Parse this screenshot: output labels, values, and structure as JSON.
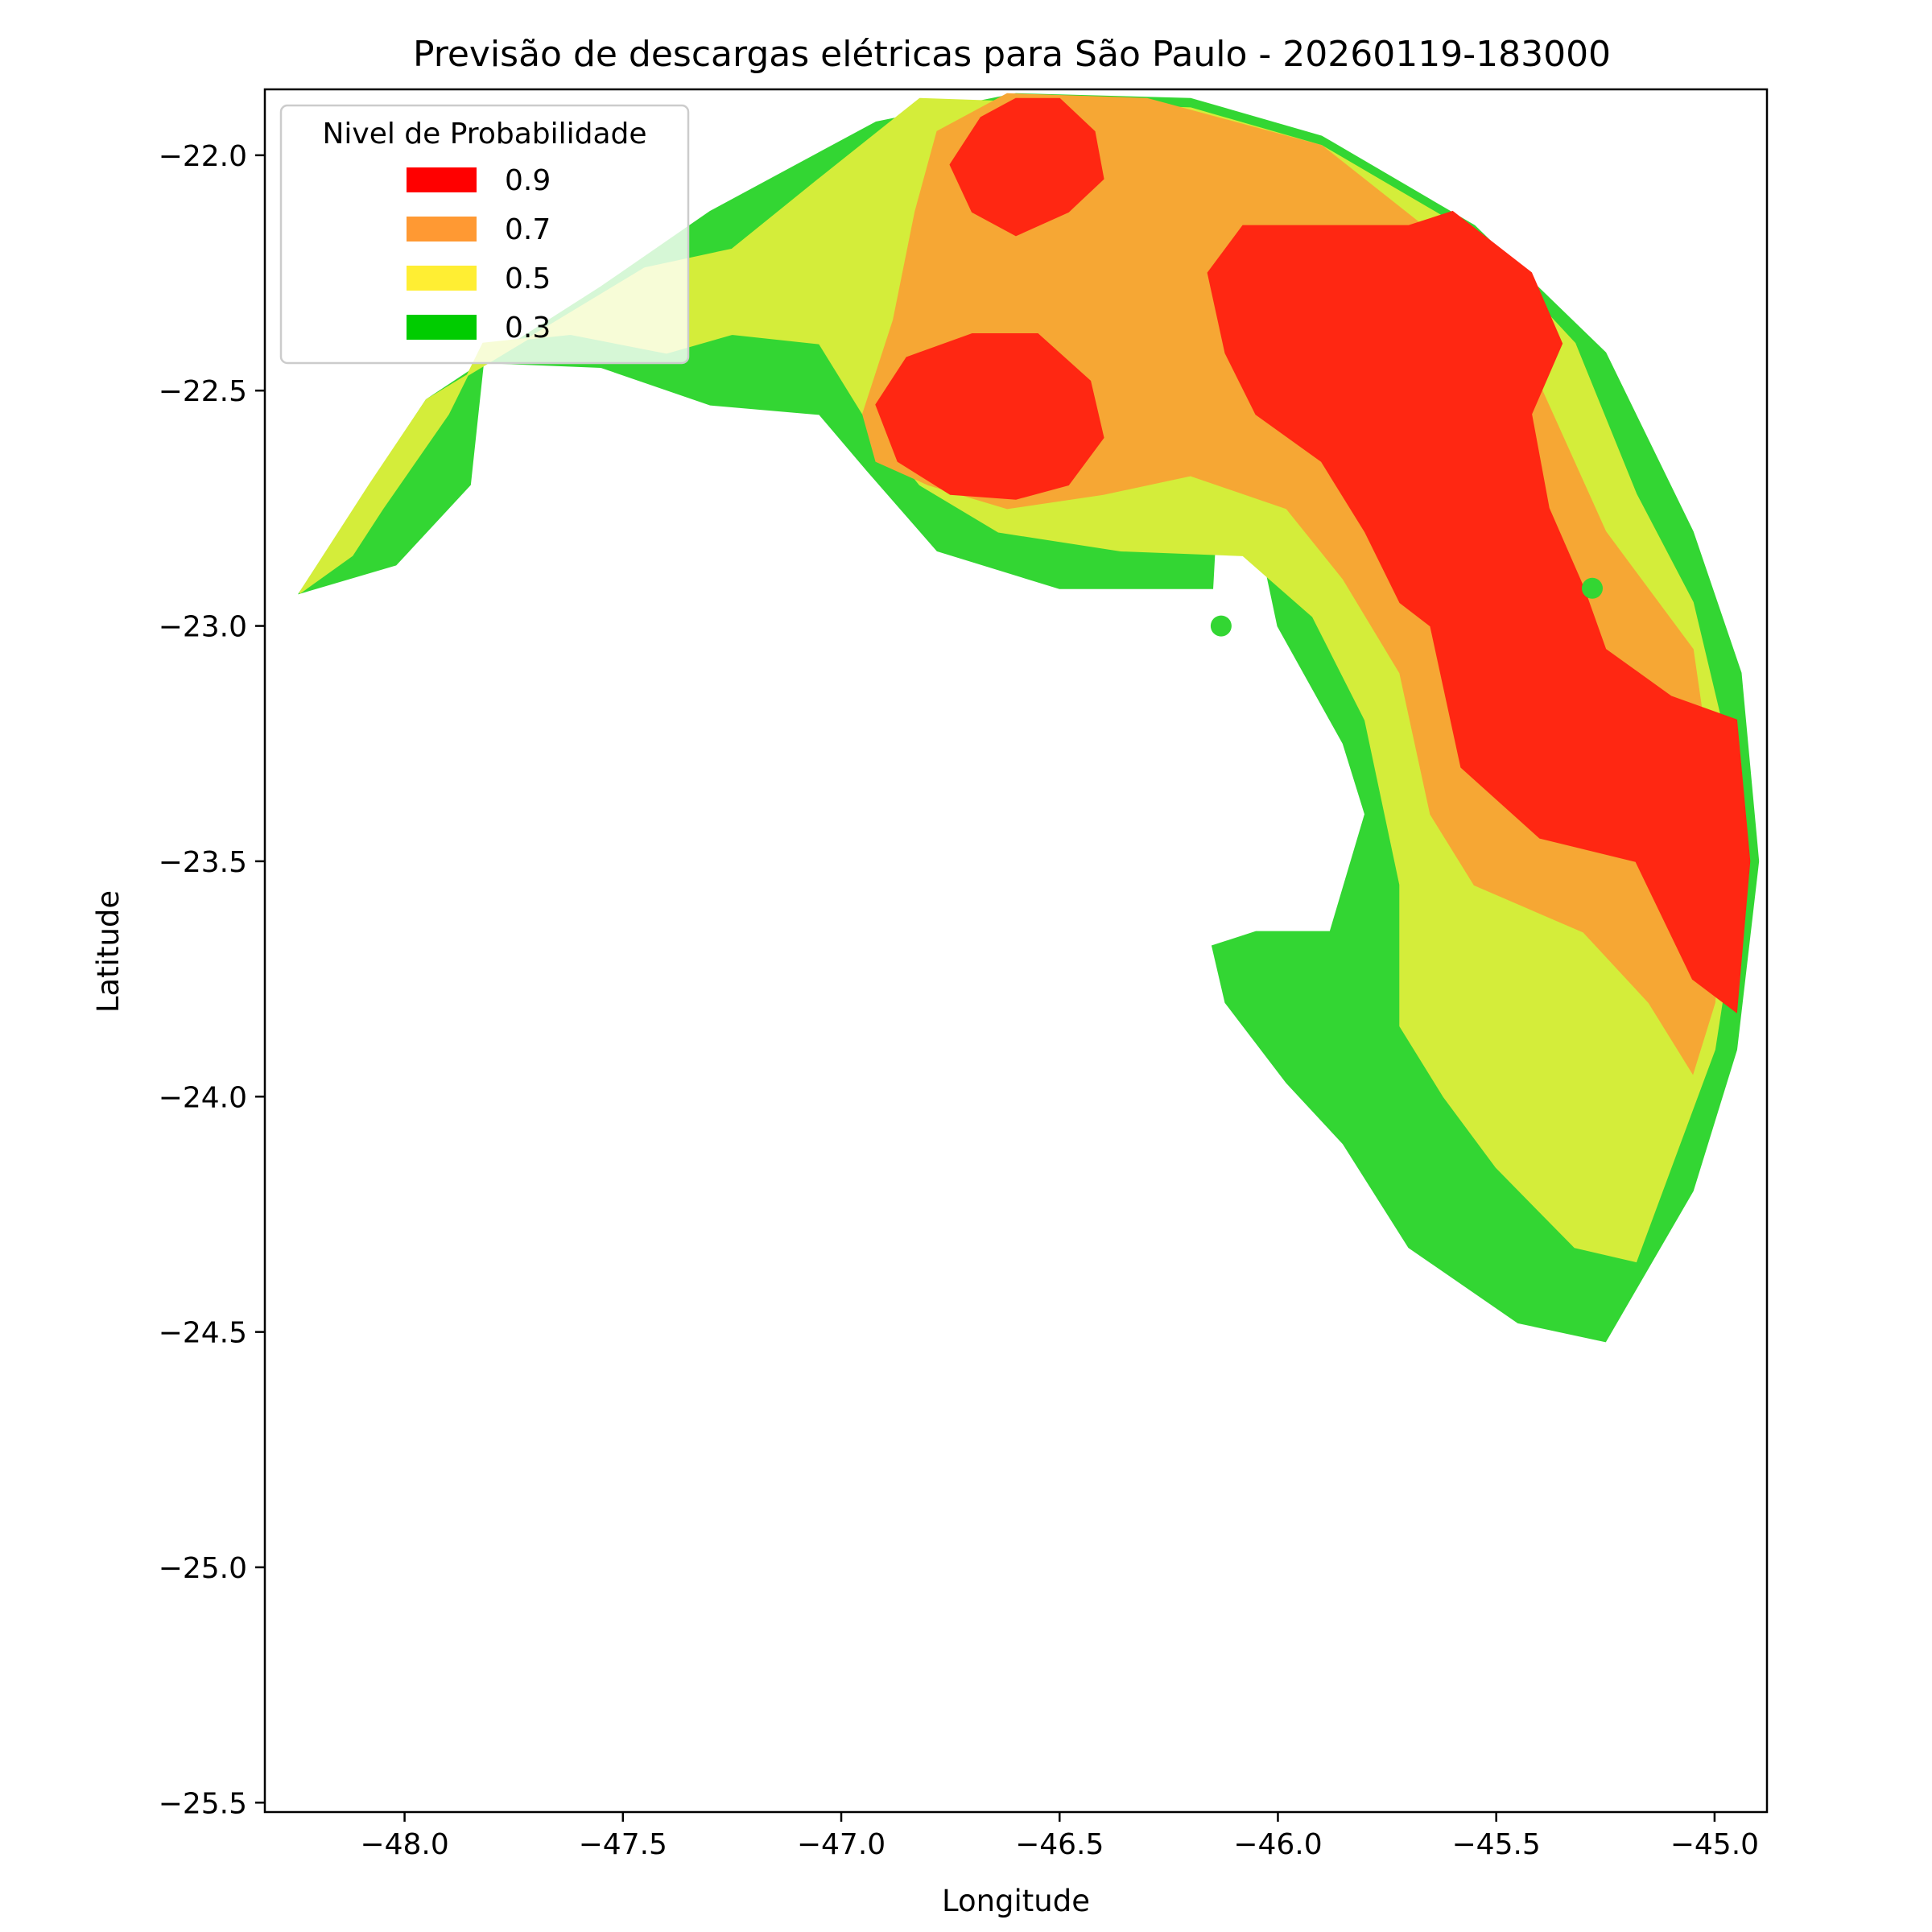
{
  "chart_data": {
    "type": "contour",
    "title": "Previsão de descargas elétricas para São Paulo - 20260119-183000",
    "xlabel": "Longitude",
    "ylabel": "Latitude",
    "xlim": [
      -48.32,
      -44.88
    ],
    "ylim": [
      -25.52,
      -21.86
    ],
    "x_ticks": [
      -48.0,
      -47.5,
      -47.0,
      -46.5,
      -46.0,
      -45.5,
      -45.0
    ],
    "x_tick_labels": [
      "−48.0",
      "−47.5",
      "−47.0",
      "−46.5",
      "−46.0",
      "−45.5",
      "−45.0"
    ],
    "y_ticks": [
      -22.0,
      -22.5,
      -23.0,
      -23.5,
      -24.0,
      -24.5,
      -25.0,
      -25.5
    ],
    "y_tick_labels": [
      "−22.0",
      "−22.5",
      "−23.0",
      "−23.5",
      "−24.0",
      "−24.5",
      "−25.0",
      "−25.5"
    ],
    "grid": false,
    "legend": {
      "title": "Nivel de Probabilidade",
      "placement": "upper-left",
      "entries": [
        {
          "label": "0.9",
          "color": "#ff0000"
        },
        {
          "label": "0.7",
          "color": "#ff9933"
        },
        {
          "label": "0.5",
          "color": "#ffee33"
        },
        {
          "label": "0.3",
          "color": "#00cc00"
        }
      ]
    },
    "levels": [
      {
        "level": "0.3",
        "fill": "#33d633",
        "regions": [
          [
            [
              -48.24,
              -22.93
            ],
            [
              -48.05,
              -22.66
            ],
            [
              -47.95,
              -22.52
            ],
            [
              -47.82,
              -22.44
            ],
            [
              -47.55,
              -22.28
            ],
            [
              -47.3,
              -22.12
            ],
            [
              -47.12,
              -22.03
            ],
            [
              -46.92,
              -21.93
            ],
            [
              -46.6,
              -21.87
            ],
            [
              -46.2,
              -21.88
            ],
            [
              -45.9,
              -21.96
            ],
            [
              -45.55,
              -22.15
            ],
            [
              -45.25,
              -22.42
            ],
            [
              -45.05,
              -22.8
            ],
            [
              -44.94,
              -23.1
            ],
            [
              -44.9,
              -23.5
            ],
            [
              -44.95,
              -23.9
            ],
            [
              -45.05,
              -24.2
            ],
            [
              -45.25,
              -24.52
            ],
            [
              -45.45,
              -24.48
            ],
            [
              -45.7,
              -24.32
            ],
            [
              -45.85,
              -24.1
            ],
            [
              -45.98,
              -23.97
            ],
            [
              -46.12,
              -23.8
            ],
            [
              -46.15,
              -23.68
            ],
            [
              -46.05,
              -23.65
            ],
            [
              -45.88,
              -23.65
            ],
            [
              -45.8,
              -23.4
            ],
            [
              -45.85,
              -23.25
            ],
            [
              -46.0,
              -23.0
            ],
            [
              -46.05,
              -22.78
            ],
            [
              -46.14,
              -22.75
            ],
            [
              -46.15,
              -22.92
            ],
            [
              -46.5,
              -22.92
            ],
            [
              -46.78,
              -22.84
            ],
            [
              -46.94,
              -22.67
            ],
            [
              -47.05,
              -22.55
            ],
            [
              -47.3,
              -22.53
            ],
            [
              -47.55,
              -22.45
            ],
            [
              -47.82,
              -22.44
            ],
            [
              -47.85,
              -22.7
            ],
            [
              -48.02,
              -22.87
            ]
          ]
        ]
      },
      {
        "level": "0.5",
        "fill": "#d4ed3a",
        "regions": [
          [
            [
              -48.24,
              -22.93
            ],
            [
              -48.08,
              -22.7
            ],
            [
              -47.95,
              -22.52
            ],
            [
              -47.7,
              -22.38
            ],
            [
              -47.45,
              -22.24
            ],
            [
              -47.25,
              -22.2
            ],
            [
              -47.05,
              -22.05
            ],
            [
              -46.82,
              -21.88
            ],
            [
              -46.2,
              -21.9
            ],
            [
              -45.9,
              -21.98
            ],
            [
              -45.55,
              -22.17
            ],
            [
              -45.32,
              -22.4
            ],
            [
              -45.18,
              -22.72
            ],
            [
              -45.05,
              -22.95
            ],
            [
              -44.96,
              -23.3
            ],
            [
              -44.95,
              -23.6
            ],
            [
              -45.0,
              -23.9
            ],
            [
              -45.08,
              -24.1
            ],
            [
              -45.18,
              -24.35
            ],
            [
              -45.32,
              -24.32
            ],
            [
              -45.5,
              -24.15
            ],
            [
              -45.62,
              -24.0
            ],
            [
              -45.72,
              -23.85
            ],
            [
              -45.72,
              -23.55
            ],
            [
              -45.8,
              -23.2
            ],
            [
              -45.92,
              -22.98
            ],
            [
              -46.08,
              -22.85
            ],
            [
              -46.36,
              -22.84
            ],
            [
              -46.64,
              -22.8
            ],
            [
              -46.82,
              -22.7
            ],
            [
              -46.95,
              -22.55
            ],
            [
              -47.05,
              -22.4
            ],
            [
              -47.25,
              -22.38
            ],
            [
              -47.4,
              -22.42
            ],
            [
              -47.62,
              -22.38
            ],
            [
              -47.82,
              -22.4
            ],
            [
              -47.9,
              -22.55
            ],
            [
              -48.05,
              -22.75
            ],
            [
              -48.12,
              -22.85
            ]
          ]
        ]
      },
      {
        "level": "0.7",
        "fill": "#f6a734",
        "regions": [
          [
            [
              -46.95,
              -22.55
            ],
            [
              -46.88,
              -22.35
            ],
            [
              -46.83,
              -22.12
            ],
            [
              -46.78,
              -21.95
            ],
            [
              -46.62,
              -21.87
            ],
            [
              -46.3,
              -21.88
            ],
            [
              -45.9,
              -21.98
            ],
            [
              -45.6,
              -22.2
            ],
            [
              -45.42,
              -22.45
            ],
            [
              -45.25,
              -22.8
            ],
            [
              -45.05,
              -23.05
            ],
            [
              -44.98,
              -23.5
            ],
            [
              -45.0,
              -23.8
            ],
            [
              -45.05,
              -23.95
            ],
            [
              -45.15,
              -23.8
            ],
            [
              -45.3,
              -23.65
            ],
            [
              -45.55,
              -23.55
            ],
            [
              -45.65,
              -23.4
            ],
            [
              -45.72,
              -23.1
            ],
            [
              -45.85,
              -22.9
            ],
            [
              -45.98,
              -22.75
            ],
            [
              -46.2,
              -22.68
            ],
            [
              -46.4,
              -22.72
            ],
            [
              -46.62,
              -22.75
            ],
            [
              -46.8,
              -22.7
            ],
            [
              -46.92,
              -22.65
            ]
          ]
        ]
      },
      {
        "level": "0.9",
        "fill": "#ff2712",
        "regions": [
          [
            [
              -46.75,
              -22.02
            ],
            [
              -46.68,
              -21.92
            ],
            [
              -46.6,
              -21.88
            ],
            [
              -46.5,
              -21.88
            ],
            [
              -46.42,
              -21.95
            ],
            [
              -46.4,
              -22.05
            ],
            [
              -46.48,
              -22.12
            ],
            [
              -46.6,
              -22.17
            ],
            [
              -46.7,
              -22.12
            ]
          ],
          [
            [
              -46.92,
              -22.53
            ],
            [
              -46.85,
              -22.43
            ],
            [
              -46.7,
              -22.38
            ],
            [
              -46.55,
              -22.38
            ],
            [
              -46.43,
              -22.48
            ],
            [
              -46.4,
              -22.6
            ],
            [
              -46.48,
              -22.7
            ],
            [
              -46.6,
              -22.73
            ],
            [
              -46.75,
              -22.72
            ],
            [
              -46.87,
              -22.65
            ]
          ],
          [
            [
              -46.16,
              -22.25
            ],
            [
              -46.08,
              -22.15
            ],
            [
              -45.7,
              -22.15
            ],
            [
              -45.6,
              -22.12
            ],
            [
              -45.42,
              -22.25
            ],
            [
              -45.35,
              -22.4
            ],
            [
              -45.42,
              -22.55
            ],
            [
              -45.38,
              -22.75
            ],
            [
              -45.3,
              -22.92
            ],
            [
              -45.25,
              -23.05
            ],
            [
              -45.1,
              -23.15
            ],
            [
              -44.95,
              -23.2
            ],
            [
              -44.92,
              -23.5
            ],
            [
              -44.95,
              -23.82
            ],
            [
              -45.05,
              -23.75
            ],
            [
              -45.18,
              -23.5
            ],
            [
              -45.4,
              -23.45
            ],
            [
              -45.58,
              -23.3
            ],
            [
              -45.65,
              -23.0
            ],
            [
              -45.72,
              -22.95
            ],
            [
              -45.8,
              -22.8
            ],
            [
              -45.9,
              -22.65
            ],
            [
              -46.05,
              -22.55
            ],
            [
              -46.12,
              -22.42
            ]
          ]
        ]
      },
      {
        "level": "0.3",
        "fill": "#33d633",
        "regions": [
          [
            [
              -46.13,
              -23.0
            ],
            [
              -46.13,
              -23.0
            ]
          ],
          [
            [
              -45.28,
              -22.92
            ],
            [
              -45.28,
              -22.92
            ]
          ]
        ]
      }
    ]
  }
}
